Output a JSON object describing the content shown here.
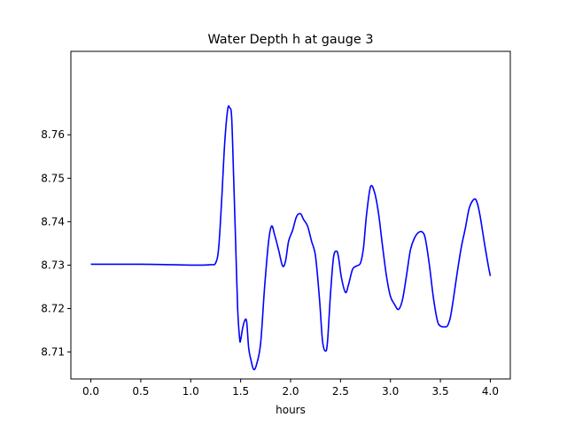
{
  "chart_data": {
    "type": "line",
    "title": "Water Depth h at gauge 3",
    "xlabel": "hours",
    "ylabel": "",
    "xlim": [
      -0.2,
      4.2
    ],
    "ylim": [
      8.7038,
      8.7792
    ],
    "xticks": [
      0.0,
      0.5,
      1.0,
      1.5,
      2.0,
      2.5,
      3.0,
      3.5,
      4.0
    ],
    "xtick_labels": [
      "0.0",
      "0.5",
      "1.0",
      "1.5",
      "2.0",
      "2.5",
      "3.0",
      "3.5",
      "4.0"
    ],
    "yticks": [
      8.71,
      8.72,
      8.73,
      8.74,
      8.75,
      8.76
    ],
    "ytick_labels": [
      "8.71",
      "8.72",
      "8.73",
      "8.74",
      "8.75",
      "8.76"
    ],
    "grid": false,
    "series": [
      {
        "color": "#0000ff",
        "x": [
          0.0,
          0.5,
          0.8,
          1.0,
          1.1,
          1.2,
          1.25,
          1.28,
          1.31,
          1.34,
          1.37,
          1.39,
          1.41,
          1.43,
          1.45,
          1.47,
          1.49,
          1.5,
          1.52,
          1.54,
          1.56,
          1.58,
          1.6,
          1.63,
          1.66,
          1.7,
          1.74,
          1.78,
          1.81,
          1.84,
          1.88,
          1.92,
          1.95,
          1.98,
          2.02,
          2.06,
          2.1,
          2.13,
          2.17,
          2.21,
          2.25,
          2.29,
          2.32,
          2.35,
          2.37,
          2.4,
          2.43,
          2.46,
          2.48,
          2.51,
          2.55,
          2.58,
          2.62,
          2.66,
          2.7,
          2.73,
          2.76,
          2.8,
          2.84,
          2.88,
          2.92,
          2.96,
          3.0,
          3.04,
          3.08,
          3.12,
          3.16,
          3.2,
          3.24,
          3.28,
          3.32,
          3.35,
          3.39,
          3.43,
          3.47,
          3.5,
          3.54,
          3.57,
          3.6,
          3.63,
          3.67,
          3.71,
          3.75,
          3.79,
          3.84,
          3.87,
          3.9,
          3.94,
          3.98,
          4.0
        ],
        "y": [
          8.7302,
          8.7302,
          8.7301,
          8.73,
          8.73,
          8.7301,
          8.7305,
          8.734,
          8.745,
          8.758,
          8.7658,
          8.7662,
          8.764,
          8.75,
          8.735,
          8.72,
          8.713,
          8.7128,
          8.7155,
          8.7172,
          8.717,
          8.711,
          8.7085,
          8.706,
          8.7072,
          8.712,
          8.725,
          8.7355,
          8.739,
          8.737,
          8.7335,
          8.7298,
          8.731,
          8.7355,
          8.738,
          8.7412,
          8.7418,
          8.7405,
          8.739,
          8.7355,
          8.732,
          8.722,
          8.7125,
          8.7102,
          8.7125,
          8.7235,
          8.7318,
          8.7332,
          8.7318,
          8.727,
          8.7237,
          8.7255,
          8.729,
          8.7298,
          8.7305,
          8.734,
          8.7415,
          8.748,
          8.7468,
          8.742,
          8.7345,
          8.7275,
          8.7228,
          8.721,
          8.7198,
          8.722,
          8.7275,
          8.7335,
          8.7362,
          8.7375,
          8.7376,
          8.736,
          8.73,
          8.7225,
          8.7172,
          8.716,
          8.7158,
          8.716,
          8.718,
          8.7222,
          8.7285,
          8.7342,
          8.7385,
          8.7432,
          8.7452,
          8.7442,
          8.741,
          8.7352,
          8.7298,
          8.7275
        ]
      }
    ]
  }
}
